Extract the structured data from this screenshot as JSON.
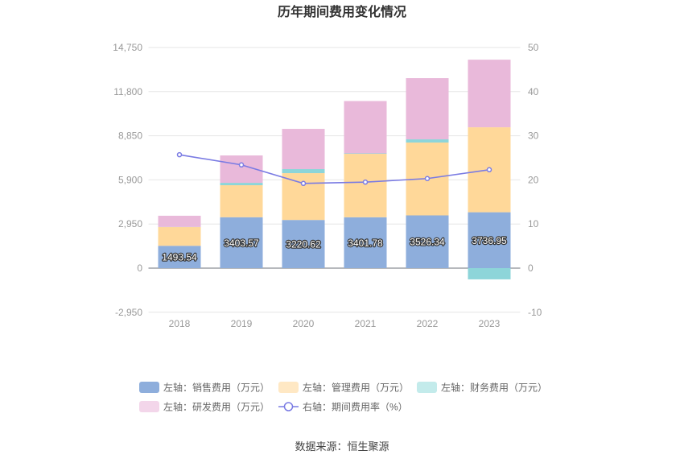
{
  "source": "数据来源：恒生聚源",
  "chart_data": {
    "type": "bar",
    "title": "历年期间费用变化情况",
    "categories": [
      "2018",
      "2019",
      "2020",
      "2021",
      "2022",
      "2023"
    ],
    "stacked": true,
    "series": [
      {
        "name": "左轴：销售费用（万元）",
        "axis": "left",
        "type": "bar",
        "color": "#8eaedc",
        "legend_color": "#8eaedc",
        "values": [
          1493.54,
          3403.57,
          3220.62,
          3401.78,
          3526.34,
          3736.95
        ],
        "data_labels": [
          "1493.54",
          "3403.57",
          "3220.62",
          "3401.78",
          "3526.34",
          "3736.95"
        ]
      },
      {
        "name": "左轴：管理费用（万元）",
        "axis": "left",
        "type": "bar",
        "color": "#ffd899",
        "legend_color": "#ffe8c4",
        "values": [
          1250,
          2140,
          3130,
          4240,
          4870,
          5680
        ]
      },
      {
        "name": "左轴：财务费用（万元）",
        "axis": "left",
        "type": "bar",
        "color": "#8dd5d9",
        "legend_color": "#c3ebeb",
        "values": [
          10,
          160,
          270,
          30,
          215,
          -750
        ]
      },
      {
        "name": "左轴：研发费用（万元）",
        "axis": "left",
        "type": "bar",
        "color": "#e9b9da",
        "legend_color": "#f3d6ea",
        "values": [
          750,
          1830,
          2690,
          3500,
          4090,
          4520
        ]
      },
      {
        "name": "右轴：期间费用率（%）",
        "axis": "right",
        "type": "line",
        "color": "#7a7be3",
        "values": [
          25.7,
          23.4,
          19.2,
          19.5,
          20.3,
          22.3
        ]
      }
    ],
    "y_axis_left": {
      "min": -2950,
      "max": 14750,
      "ticks": [
        14750,
        11800,
        8850,
        5900,
        2950,
        0,
        -2950
      ],
      "tick_labels": [
        "14,750",
        "11,800",
        "8,850",
        "5,900",
        "2,950",
        "0",
        "-2,950"
      ]
    },
    "y_axis_right": {
      "min": -10,
      "max": 50,
      "ticks": [
        50,
        40,
        30,
        20,
        10,
        0,
        -10
      ],
      "tick_labels": [
        "50",
        "40",
        "30",
        "20",
        "10",
        "0",
        "-10"
      ]
    },
    "legend_position": "bottom",
    "grid": true
  }
}
